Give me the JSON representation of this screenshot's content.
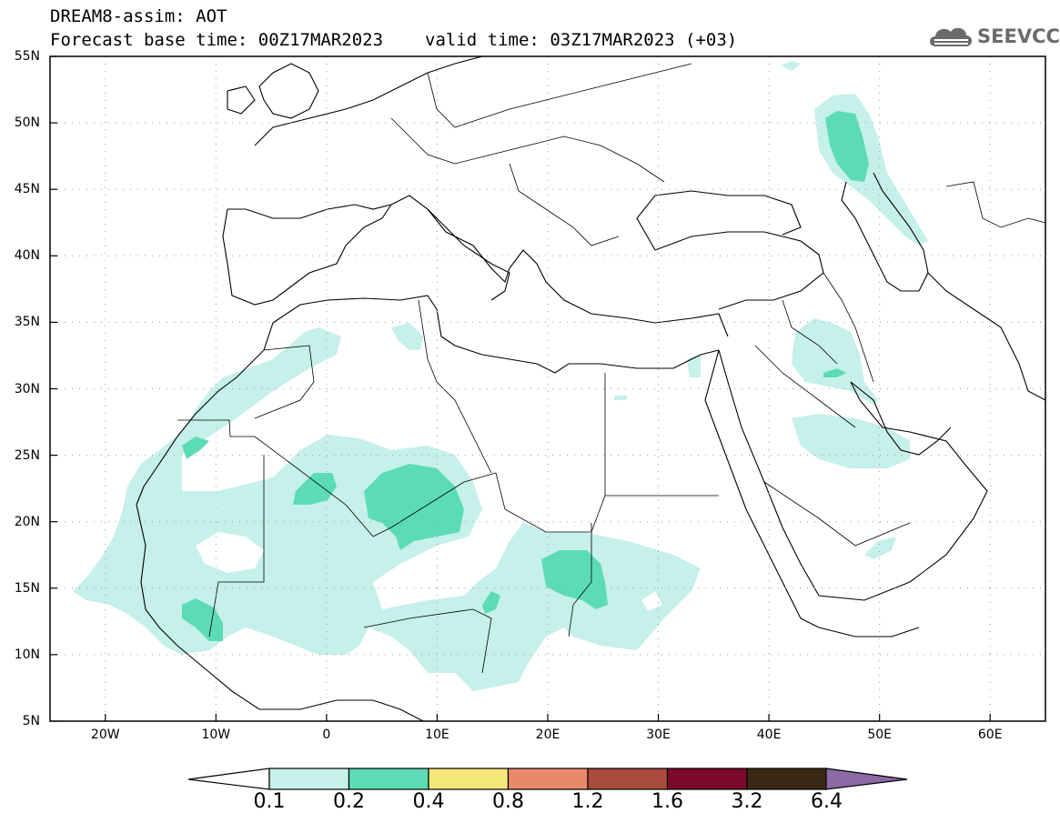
{
  "header": {
    "title": "DREAM8-assim: AOT",
    "base_time": "Forecast base time: 00Z17MAR2023",
    "valid_time": "valid time: 03Z17MAR2023 (+03)"
  },
  "logo": {
    "text": "SEEVCCC",
    "icon": "cloud-icon"
  },
  "map": {
    "variable": "AOT",
    "lon_range": [
      -25,
      65
    ],
    "lat_range": [
      5,
      55
    ],
    "grid": "dotted",
    "lat_ticks": [
      {
        "value": 55,
        "label": "55N"
      },
      {
        "value": 50,
        "label": "50N"
      },
      {
        "value": 45,
        "label": "45N"
      },
      {
        "value": 40,
        "label": "40N"
      },
      {
        "value": 35,
        "label": "35N"
      },
      {
        "value": 30,
        "label": "30N"
      },
      {
        "value": 25,
        "label": "25N"
      },
      {
        "value": 20,
        "label": "20N"
      },
      {
        "value": 15,
        "label": "15N"
      },
      {
        "value": 10,
        "label": "10N"
      },
      {
        "value": 5,
        "label": "5N"
      }
    ],
    "lon_ticks": [
      {
        "value": -20,
        "label": "20W"
      },
      {
        "value": -10,
        "label": "10W"
      },
      {
        "value": 0,
        "label": "0"
      },
      {
        "value": 10,
        "label": "10E"
      },
      {
        "value": 20,
        "label": "20E"
      },
      {
        "value": 30,
        "label": "30E"
      },
      {
        "value": 40,
        "label": "40E"
      },
      {
        "value": 50,
        "label": "50E"
      },
      {
        "value": 60,
        "label": "60E"
      }
    ],
    "colors": {
      "0.1-0.2": "#c6f0ea",
      "0.2-0.4": "#5cdcb4",
      "land_outline": "#000000"
    }
  },
  "colorbar": {
    "labels": [
      "0.1",
      "0.2",
      "0.4",
      "0.8",
      "1.2",
      "1.6",
      "3.2",
      "6.4"
    ],
    "colors": [
      "#c6f0ea",
      "#5cdcb4",
      "#f5e67a",
      "#e8896a",
      "#a84c3e",
      "#7c0a2a",
      "#3b2814",
      "#8b6aa6"
    ],
    "low_extend_color": "#ffffff"
  }
}
